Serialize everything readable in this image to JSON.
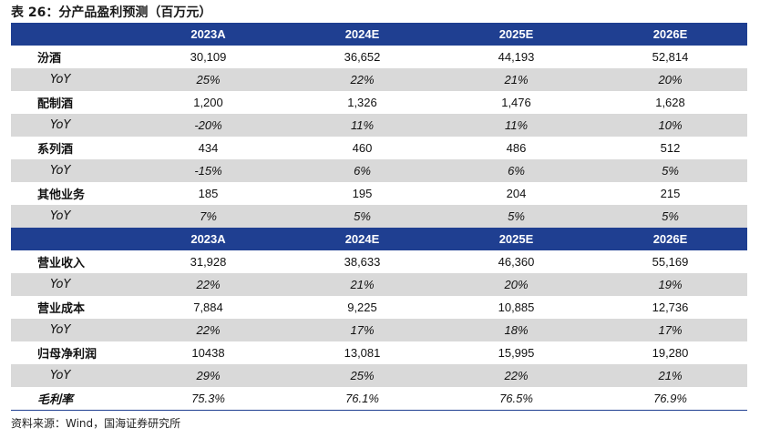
{
  "title": "表 26：分产品盈利预测（百万元）",
  "header1": [
    "2023A",
    "2024E",
    "2025E",
    "2026E"
  ],
  "header2": [
    "2023A",
    "2024E",
    "2025E",
    "2026E"
  ],
  "section1": [
    {
      "label": "汾酒",
      "values": [
        "30,109",
        "36,652",
        "44,193",
        "52,814"
      ],
      "type": "value"
    },
    {
      "label": "YoY",
      "values": [
        "25%",
        "22%",
        "21%",
        "20%"
      ],
      "type": "yoy"
    },
    {
      "label": "配制酒",
      "values": [
        "1,200",
        "1,326",
        "1,476",
        "1,628"
      ],
      "type": "value"
    },
    {
      "label": "YoY",
      "values": [
        "-20%",
        "11%",
        "11%",
        "10%"
      ],
      "type": "yoy"
    },
    {
      "label": "系列酒",
      "values": [
        "434",
        "460",
        "486",
        "512"
      ],
      "type": "value"
    },
    {
      "label": "YoY",
      "values": [
        "-15%",
        "6%",
        "6%",
        "5%"
      ],
      "type": "yoy"
    },
    {
      "label": "其他业务",
      "values": [
        "185",
        "195",
        "204",
        "215"
      ],
      "type": "value"
    },
    {
      "label": "YoY",
      "values": [
        "7%",
        "5%",
        "5%",
        "5%"
      ],
      "type": "yoy"
    }
  ],
  "section2": [
    {
      "label": "营业收入",
      "values": [
        "31,928",
        "38,633",
        "46,360",
        "55,169"
      ],
      "type": "value"
    },
    {
      "label": "YoY",
      "values": [
        "22%",
        "21%",
        "20%",
        "19%"
      ],
      "type": "yoy"
    },
    {
      "label": "营业成本",
      "values": [
        "7,884",
        "9,225",
        "10,885",
        "12,736"
      ],
      "type": "value"
    },
    {
      "label": "YoY",
      "values": [
        "22%",
        "17%",
        "18%",
        "17%"
      ],
      "type": "yoy"
    },
    {
      "label": "归母净利润",
      "values": [
        "10438",
        "13,081",
        "15,995",
        "19,280"
      ],
      "type": "value"
    },
    {
      "label": "YoY",
      "values": [
        "29%",
        "25%",
        "22%",
        "21%"
      ],
      "type": "yoy"
    },
    {
      "label": "毛利率",
      "values": [
        "75.3%",
        "76.1%",
        "76.5%",
        "76.9%"
      ],
      "type": "margin"
    }
  ],
  "source": "资料来源：Wind，国海证券研究所"
}
